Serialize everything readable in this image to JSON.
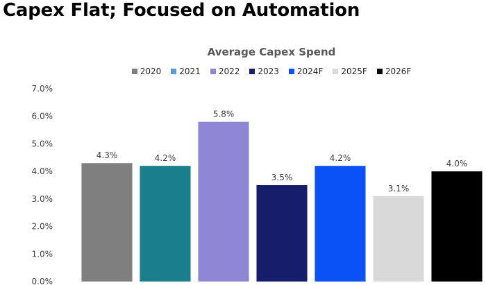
{
  "slide_title": "Capex Flat; Focused on Automation",
  "chart_data": {
    "type": "bar",
    "title": "Average Capex Spend",
    "xlabel": "",
    "ylabel": "",
    "legend_position": "top",
    "grid": false,
    "ylim": [
      0,
      7
    ],
    "y_ticks": [
      "0.0%",
      "1.0%",
      "2.0%",
      "3.0%",
      "4.0%",
      "5.0%",
      "6.0%",
      "7.0%"
    ],
    "categories": [
      "2020",
      "2021",
      "2022",
      "2023",
      "2024F",
      "2025F",
      "2026F"
    ],
    "values": [
      4.3,
      4.2,
      5.8,
      3.5,
      4.2,
      3.1,
      4.0
    ],
    "data_labels": [
      "4.3%",
      "4.2%",
      "5.8%",
      "3.5%",
      "4.2%",
      "3.1%",
      "4.0%"
    ],
    "bar_colors": [
      "#7f7f7f",
      "#1b7e8c",
      "#8f86d6",
      "#161e6b",
      "#0a52f5",
      "#d9d9d9",
      "#000000"
    ],
    "legend_colors": [
      "#7f7f7f",
      "#5b9bd5",
      "#8f86d6",
      "#161e6b",
      "#0a52f5",
      "#d9d9d9",
      "#000000"
    ]
  }
}
